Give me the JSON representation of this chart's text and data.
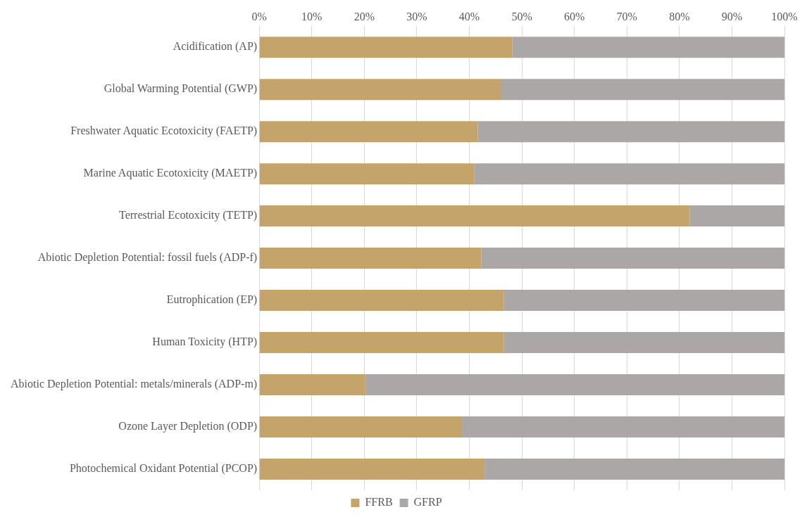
{
  "chart_data": {
    "type": "bar",
    "orientation": "horizontal",
    "stacked": true,
    "categories": [
      "Acidification (AP)",
      "Global Warming Potential (GWP)",
      "Freshwater Aquatic Ecotoxicity (FAETP)",
      "Marine Aquatic Ecotoxicity (MAETP)",
      "Terrestrial Ecotoxicity (TETP)",
      "Abiotic Depletion Potential: fossil fuels (ADP-f)",
      "Eutrophication (EP)",
      "Human Toxicity (HTP)",
      "Abiotic Depletion Potential: metals/minerals (ADP-m)",
      "Ozone Layer Depletion (ODP)",
      "Photochemical Oxidant Potential (PCOP)"
    ],
    "series": [
      {
        "name": "FFRB",
        "color": "#c4a46a",
        "values": [
          48.2,
          46.1,
          41.6,
          40.9,
          82.0,
          42.3,
          46.6,
          46.6,
          20.2,
          38.6,
          42.9
        ]
      },
      {
        "name": "GFRP",
        "color": "#aba7a7",
        "values": [
          51.8,
          53.9,
          58.4,
          59.1,
          18.0,
          57.7,
          53.4,
          53.4,
          79.8,
          61.4,
          57.1
        ]
      }
    ],
    "xlim": [
      0,
      100
    ],
    "xticks": [
      {
        "value": 0,
        "label": "0%"
      },
      {
        "value": 10,
        "label": "10%"
      },
      {
        "value": 20,
        "label": "20%"
      },
      {
        "value": 30,
        "label": "30%"
      },
      {
        "value": 40,
        "label": "40%"
      },
      {
        "value": 50,
        "label": "50%"
      },
      {
        "value": 60,
        "label": "60%"
      },
      {
        "value": 70,
        "label": "70%"
      },
      {
        "value": 80,
        "label": "80%"
      },
      {
        "value": 90,
        "label": "90%"
      },
      {
        "value": 100,
        "label": "100%"
      }
    ],
    "grid": "x",
    "legend": "bottom"
  }
}
